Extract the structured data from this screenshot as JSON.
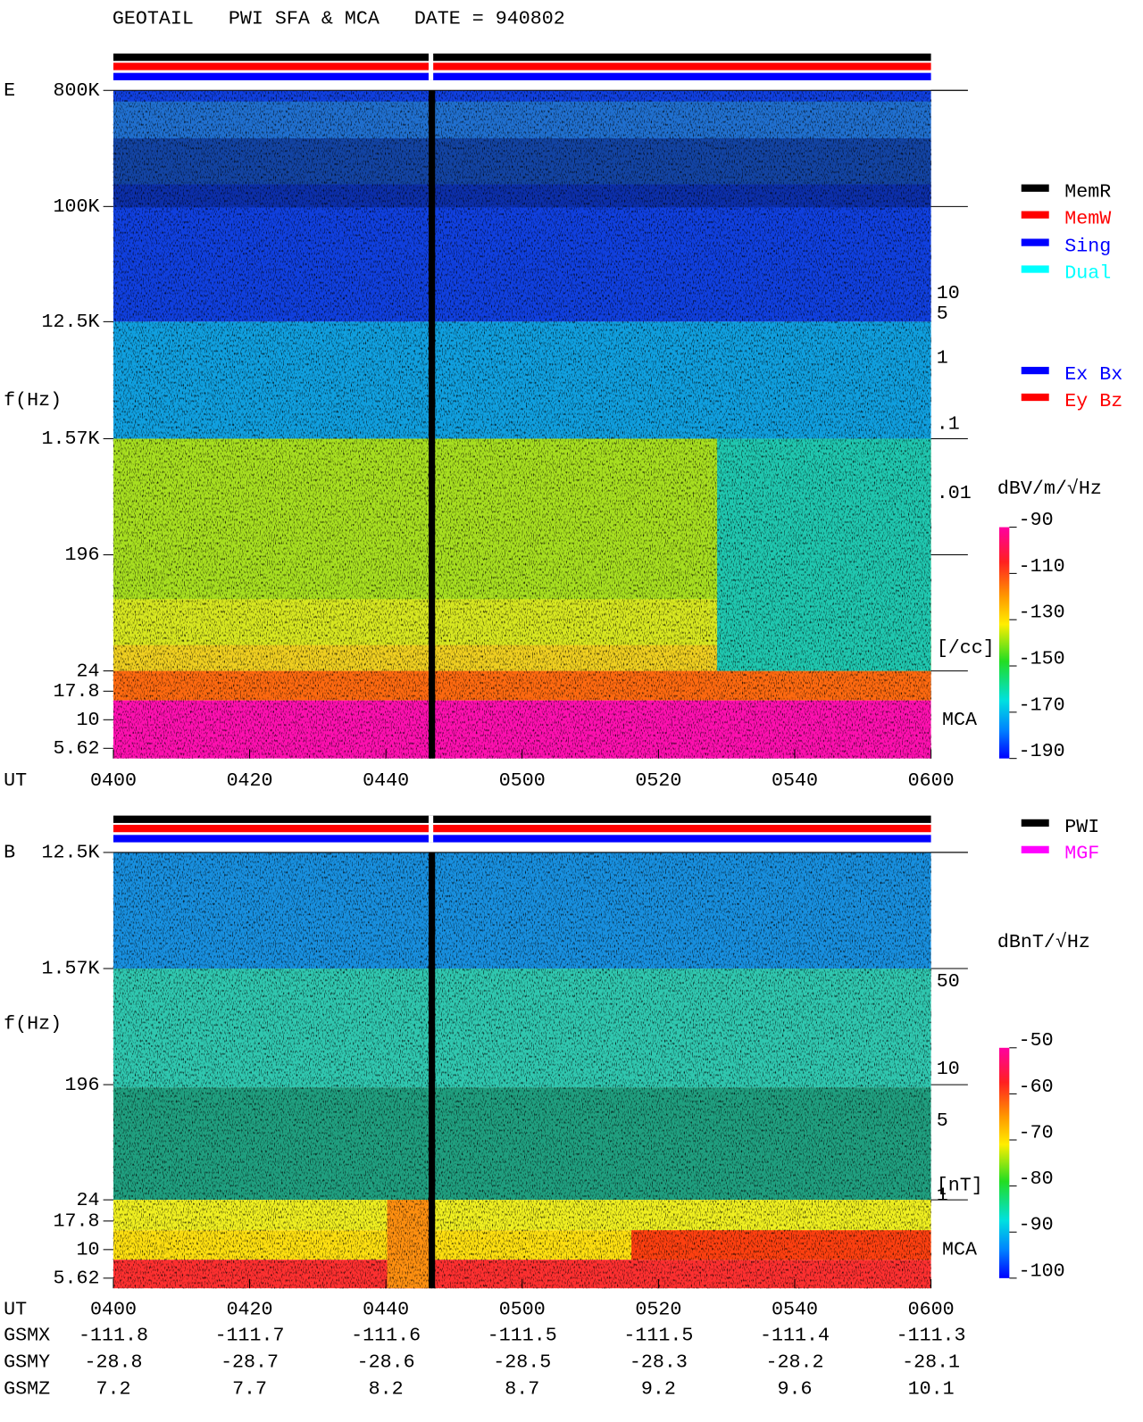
{
  "title": "GEOTAIL   PWI SFA & MCA   DATE = 940802",
  "panels": [
    {
      "label": "E",
      "y_axis_label": "f(Hz)",
      "y_ticks": [
        "800K",
        "100K",
        "12.5K",
        "1.57K",
        "196",
        "24",
        "17.8",
        "10",
        "5.62"
      ],
      "x_axis_label": "UT",
      "x_ticks": [
        "0400",
        "0420",
        "0440",
        "0500",
        "0520",
        "0540",
        "0600"
      ],
      "right_labels": [
        "10",
        "5",
        "1",
        ".1",
        ".01",
        "[/cc]"
      ],
      "mca": "MCA",
      "legend": [
        {
          "name": "MemR",
          "color": "#000000"
        },
        {
          "name": "MemW",
          "color": "#ff0000"
        },
        {
          "name": "Sing",
          "color": "#0000ff"
        },
        {
          "name": "Dual",
          "color": "#00ffff"
        }
      ],
      "legend2": [
        {
          "name": "Ex Bx",
          "color": "#0000ff"
        },
        {
          "name": "Ey Bz",
          "color": "#ff0000"
        }
      ],
      "colorbar": {
        "unit": "dBV/m/√Hz",
        "ticks": [
          -90,
          -110,
          -130,
          -150,
          -170,
          -190
        ]
      }
    },
    {
      "label": "B",
      "y_axis_label": "f(Hz)",
      "y_ticks": [
        "12.5K",
        "1.57K",
        "196",
        "24",
        "17.8",
        "10",
        "5.62"
      ],
      "x_axis_label": "UT",
      "x_ticks": [
        "0400",
        "0420",
        "0440",
        "0500",
        "0520",
        "0540",
        "0600"
      ],
      "right_labels": [
        "50",
        "10",
        "5",
        "1",
        "[nT]"
      ],
      "mca": "MCA",
      "legend": [
        {
          "name": "PWI",
          "color": "#000000"
        },
        {
          "name": "MGF",
          "color": "#ff00ff"
        }
      ],
      "colorbar": {
        "unit": "dBnT/√Hz",
        "ticks": [
          -50,
          -60,
          -70,
          -80,
          -90,
          -100
        ]
      }
    }
  ],
  "orbit": {
    "rows": [
      {
        "name": "GSMX",
        "values": [
          -111.8,
          -111.7,
          -111.6,
          -111.5,
          -111.5,
          -111.4,
          -111.3
        ]
      },
      {
        "name": "GSMY",
        "values": [
          -28.8,
          -28.7,
          -28.6,
          -28.5,
          -28.3,
          -28.2,
          -28.1
        ]
      },
      {
        "name": "GSMZ",
        "values": [
          7.2,
          7.7,
          8.2,
          8.7,
          9.2,
          9.6,
          10.1
        ]
      }
    ]
  }
}
